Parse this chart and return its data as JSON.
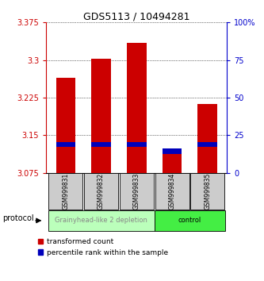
{
  "title": "GDS5113 / 10494281",
  "samples": [
    "GSM999831",
    "GSM999832",
    "GSM999833",
    "GSM999834",
    "GSM999835"
  ],
  "red_bar_bottom": [
    3.075,
    3.075,
    3.075,
    3.075,
    3.075
  ],
  "red_bar_top": [
    3.265,
    3.302,
    3.335,
    3.118,
    3.213
  ],
  "blue_bar_bottom": [
    3.127,
    3.127,
    3.127,
    3.113,
    3.127
  ],
  "blue_bar_top": [
    3.137,
    3.137,
    3.137,
    3.123,
    3.137
  ],
  "ylim_left": [
    3.075,
    3.375
  ],
  "ylim_right": [
    0,
    100
  ],
  "yticks_left": [
    3.075,
    3.15,
    3.225,
    3.3,
    3.375
  ],
  "ytick_labels_left": [
    "3.075",
    "3.15",
    "3.225",
    "3.3",
    "3.375"
  ],
  "yticks_right": [
    0,
    25,
    50,
    75,
    100
  ],
  "ytick_labels_right": [
    "0",
    "25",
    "50",
    "75",
    "100%"
  ],
  "groups": [
    {
      "label": "Grainyhead-like 2 depletion",
      "color": "#bbffbb",
      "text_color": "#888888",
      "span": [
        0,
        3
      ]
    },
    {
      "label": "control",
      "color": "#44ee44",
      "text_color": "#000000",
      "span": [
        3,
        5
      ]
    }
  ],
  "protocol_label": "protocol",
  "legend_red": "transformed count",
  "legend_blue": "percentile rank within the sample",
  "bar_width": 0.55,
  "sample_bg_color": "#cccccc",
  "left_tick_color": "#cc0000",
  "right_tick_color": "#0000cc",
  "bar_red_color": "#cc0000",
  "bar_blue_color": "#0000bb",
  "fig_width": 3.33,
  "fig_height": 3.54,
  "dpi": 100
}
